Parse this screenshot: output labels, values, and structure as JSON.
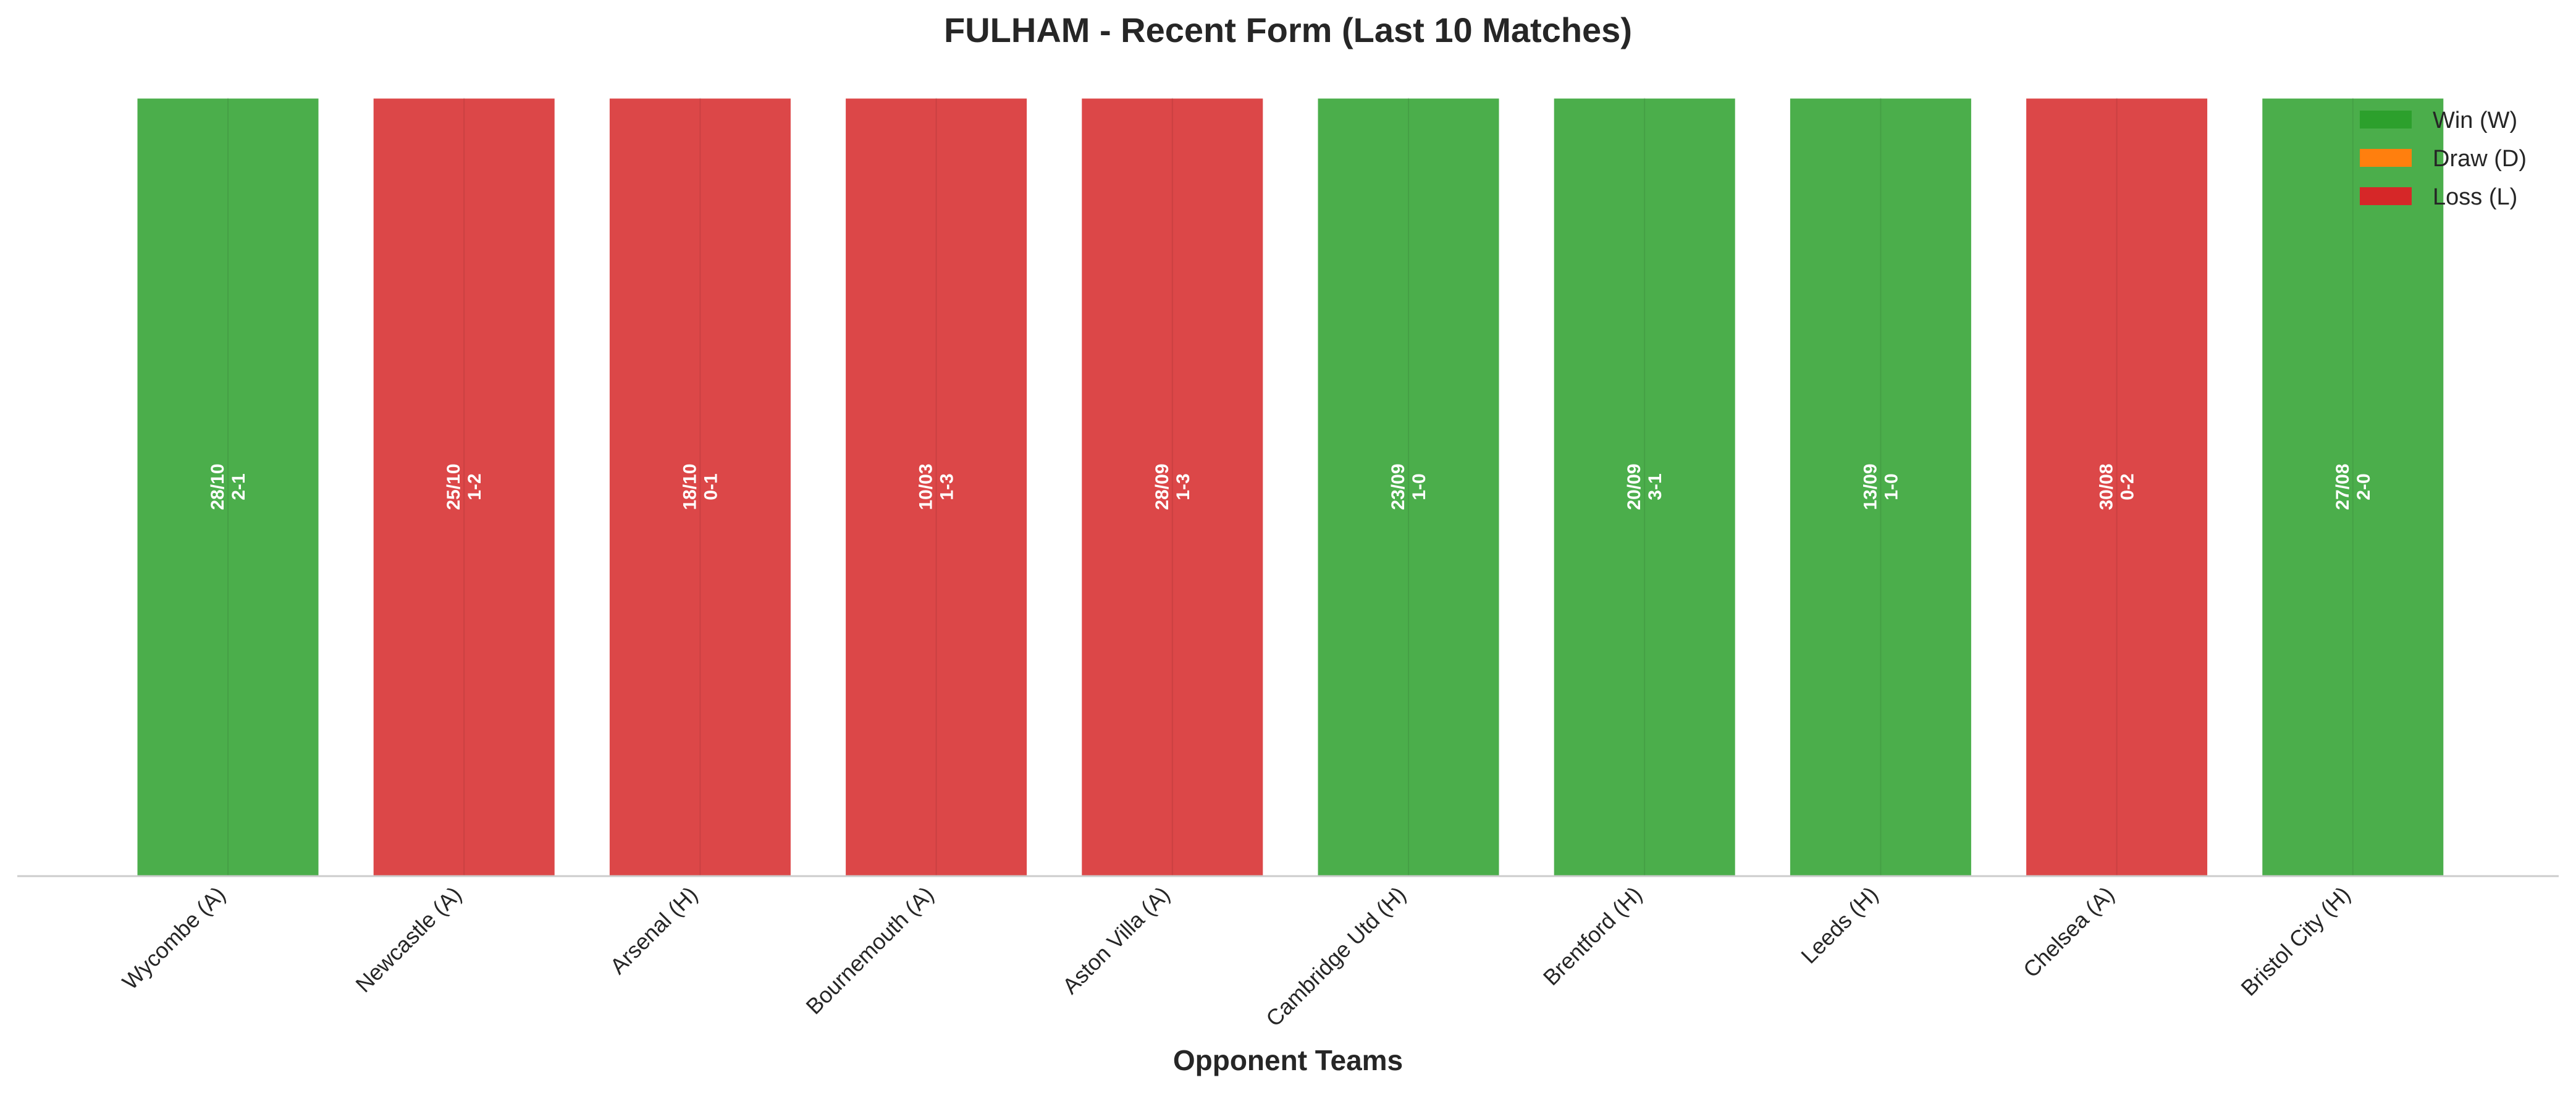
{
  "chart_data": {
    "type": "bar",
    "title": "FULHAM - Recent Form (Last 10 Matches)",
    "xlabel": "Opponent Teams",
    "ylabel": "",
    "ylim": [
      0,
      1
    ],
    "grid": false,
    "legend_position": "top-right",
    "categories": [
      "Wycombe (A)",
      "Newcastle (A)",
      "Arsenal (H)",
      "Bournemouth (A)",
      "Aston Villa (A)",
      "Cambridge Utd (H)",
      "Brentford (H)",
      "Leeds (H)",
      "Chelsea (A)",
      "Bristol City (H)"
    ],
    "values": [
      1,
      1,
      1,
      1,
      1,
      1,
      1,
      1,
      1,
      1
    ],
    "results": [
      "W",
      "L",
      "L",
      "L",
      "L",
      "W",
      "W",
      "W",
      "L",
      "W"
    ],
    "dates": [
      "28/10",
      "25/10",
      "18/10",
      "10/03",
      "28/09",
      "23/09",
      "20/09",
      "13/09",
      "30/08",
      "27/08"
    ],
    "scores": [
      "2-1",
      "1-2",
      "0-1",
      "1-3",
      "1-3",
      "1-0",
      "3-1",
      "1-0",
      "0-2",
      "2-0"
    ],
    "legend": [
      {
        "key": "W",
        "label": "Win (W)",
        "color": "#2ca02c"
      },
      {
        "key": "D",
        "label": "Draw (D)",
        "color": "#ff7f0e"
      },
      {
        "key": "L",
        "label": "Loss (L)",
        "color": "#d62728"
      }
    ]
  }
}
